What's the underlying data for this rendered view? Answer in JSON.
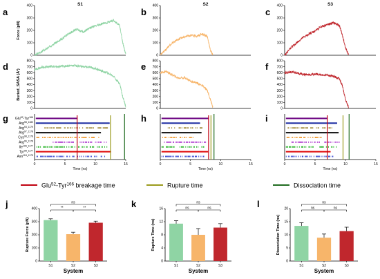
{
  "colors": {
    "s1": "#8fd4a4",
    "s2": "#f7b56a",
    "s3": "#c0272d",
    "breakage": "#c0000f",
    "rupture": "#9a9a1a",
    "dissociation": "#1f6b1f",
    "residue_colors": [
      "#6a0080",
      "#1a2aa0",
      "#a08a3a",
      "#111111",
      "#f09a30",
      "#b040d0",
      "#2bb52b",
      "#e01010",
      "#3a4ad0"
    ]
  },
  "columns": [
    {
      "title": "S1",
      "labels": {
        "top": "a",
        "mid": "d",
        "bot": "g"
      }
    },
    {
      "title": "S2",
      "labels": {
        "top": "b",
        "mid": "e",
        "bot": "h"
      }
    },
    {
      "title": "S3",
      "labels": {
        "top": "c",
        "mid": "f",
        "bot": "i"
      }
    }
  ],
  "residues": {
    "labels": [
      "Glu52-Tyr166",
      "Arg98-1180",
      "Arg93-1179",
      "Arg97-1178",
      "Cys98-1178",
      "Arg96-1178",
      "Ile106-1177",
      "Tyr98-1177",
      "Asn118-1175"
    ]
  },
  "legend": {
    "breakage": "Glu52-Tyr166 breakage time",
    "rupture": "Rupture time",
    "dissociation": "Dissociation time"
  },
  "chart_data": [
    {
      "panel": "a",
      "type": "line",
      "title": "S1",
      "ylabel": "Force (pN)",
      "xlim": [
        0,
        15
      ],
      "ylim": [
        0,
        400
      ],
      "yticks": [
        0,
        100,
        200,
        300,
        400
      ],
      "color": "#8fd4a4",
      "x": [
        0,
        1,
        2,
        3,
        4,
        5,
        6,
        7,
        8,
        9,
        10,
        11,
        12,
        13,
        14,
        14.5,
        15
      ],
      "y": [
        0,
        25,
        55,
        85,
        115,
        150,
        185,
        210,
        185,
        220,
        235,
        250,
        265,
        280,
        240,
        100,
        10
      ]
    },
    {
      "panel": "b",
      "type": "line",
      "title": "S2",
      "xlim": [
        0,
        15
      ],
      "ylim": [
        0,
        400
      ],
      "yticks": [
        0,
        100,
        200,
        300,
        400
      ],
      "color": "#f7b56a",
      "x": [
        0,
        1,
        2,
        3,
        4,
        5,
        6,
        7,
        7.8,
        8.3,
        8.7
      ],
      "y": [
        0,
        50,
        100,
        130,
        150,
        160,
        155,
        170,
        150,
        40,
        5
      ]
    },
    {
      "panel": "c",
      "type": "line",
      "title": "S3",
      "xlim": [
        0,
        15
      ],
      "ylim": [
        0,
        400
      ],
      "yticks": [
        0,
        100,
        200,
        300,
        400
      ],
      "color": "#c0272d",
      "x": [
        0,
        1,
        2,
        3,
        4,
        5,
        6,
        7,
        8,
        9,
        9.5,
        10,
        10.5
      ],
      "y": [
        0,
        60,
        100,
        140,
        170,
        195,
        230,
        245,
        260,
        240,
        160,
        60,
        5
      ]
    },
    {
      "panel": "d",
      "type": "line",
      "ylabel": "Buried_SASA (Å²)",
      "xlim": [
        0,
        15
      ],
      "ylim": [
        0,
        800
      ],
      "yticks": [
        0,
        100,
        200,
        300,
        400,
        500,
        600,
        700,
        800
      ],
      "color": "#8fd4a4",
      "x": [
        0,
        1,
        2,
        3,
        4,
        5,
        6,
        7,
        8,
        9,
        10,
        11,
        12,
        13,
        14,
        14.5,
        15
      ],
      "y": [
        650,
        690,
        700,
        705,
        700,
        710,
        720,
        715,
        700,
        690,
        670,
        630,
        600,
        540,
        420,
        200,
        30
      ]
    },
    {
      "panel": "e",
      "type": "line",
      "xlim": [
        0,
        15
      ],
      "ylim": [
        0,
        800
      ],
      "yticks": [
        0,
        100,
        200,
        300,
        400,
        500,
        600,
        700,
        800
      ],
      "color": "#f7b56a",
      "x": [
        0,
        1,
        2,
        3,
        4,
        5,
        6,
        7,
        7.8,
        8.3,
        8.7
      ],
      "y": [
        600,
        620,
        560,
        510,
        520,
        460,
        430,
        380,
        300,
        150,
        20
      ]
    },
    {
      "panel": "f",
      "type": "line",
      "xlim": [
        0,
        15
      ],
      "ylim": [
        0,
        800
      ],
      "yticks": [
        0,
        100,
        200,
        300,
        400,
        500,
        600,
        700,
        800
      ],
      "color": "#c0272d",
      "x": [
        0,
        1,
        2,
        3,
        4,
        5,
        6,
        7,
        8,
        9,
        9.5,
        10,
        10.5
      ],
      "y": [
        600,
        610,
        600,
        570,
        560,
        580,
        560,
        560,
        540,
        500,
        380,
        150,
        20
      ]
    },
    {
      "panel": "g",
      "type": "scatter",
      "xlabel": "Time (ns)",
      "xlim": [
        0,
        15
      ],
      "xticks": [
        0,
        5,
        10,
        15
      ],
      "categories": [
        "Glu52-Tyr166",
        "Arg98-1180",
        "Arg93-1179",
        "Arg97-1178",
        "Cys98-1178",
        "Arg96-1178",
        "Ile106-1177",
        "Tyr98-1177",
        "Asn118-1175"
      ],
      "intervals": [
        [
          0.2,
          7.0
        ],
        [
          0.2,
          12.2
        ],
        [
          1.5,
          12.0
        ],
        [
          0.2,
          10.8
        ],
        [
          0.3,
          10.5
        ],
        [
          3.0,
          12.0
        ],
        [
          0.2,
          12.0
        ],
        [
          0.2,
          12.5
        ],
        [
          0.2,
          11.5
        ]
      ],
      "breakage_time": 7.0,
      "rupture_time": 12.5,
      "dissociation_time": 14.8
    },
    {
      "panel": "h",
      "type": "scatter",
      "xlabel": "Time (ns)",
      "xlim": [
        0,
        15
      ],
      "xticks": [
        0,
        5,
        10,
        15
      ],
      "intervals": [
        [
          0.2,
          8.0
        ],
        [
          0.2,
          6.5
        ],
        [
          1.0,
          7.0
        ],
        [
          0.2,
          6.8
        ],
        [
          0.2,
          5.5
        ],
        [
          0.5,
          7.5
        ],
        [
          0.2,
          7.2
        ],
        [
          0.2,
          7.8
        ],
        [
          0.2,
          7.4
        ]
      ],
      "breakage_time": 8.0,
      "rupture_time": 8.4,
      "dissociation_time": 8.9
    },
    {
      "panel": "i",
      "type": "scatter",
      "xlabel": "Time (ns)",
      "xlim": [
        0,
        15
      ],
      "xticks": [
        0,
        5,
        10,
        15
      ],
      "intervals": [
        [
          0.2,
          7.0
        ],
        [
          0.2,
          8.5
        ],
        [
          0.5,
          8.0
        ],
        [
          0.2,
          8.8
        ],
        [
          0.2,
          6.2
        ],
        [
          1.0,
          9.0
        ],
        [
          0.2,
          8.5
        ],
        [
          0.2,
          7.5
        ],
        [
          0.2,
          8.0
        ]
      ],
      "breakage_time": 7.0,
      "rupture_time": 9.6,
      "dissociation_time": 10.6
    },
    {
      "panel": "j",
      "type": "bar",
      "ylabel": "Rupture Force (pN)",
      "xlabel": "System",
      "categories": [
        "S1",
        "S2",
        "S3"
      ],
      "values": [
        312,
        205,
        292
      ],
      "errors": [
        10,
        15,
        12
      ],
      "ylim": [
        0,
        400
      ],
      "yticks": [
        0,
        100,
        200,
        300,
        400
      ],
      "significance": [
        {
          "pair": [
            0,
            1
          ],
          "text": "**"
        },
        {
          "pair": [
            1,
            2
          ],
          "text": "**"
        },
        {
          "pair": [
            0,
            2
          ],
          "text": "ns"
        }
      ]
    },
    {
      "panel": "k",
      "type": "bar",
      "ylabel": "Rupture Time (ns)",
      "xlabel": "System",
      "categories": [
        "S1",
        "S2",
        "S3"
      ],
      "values": [
        11.4,
        8.0,
        10.2
      ],
      "errors": [
        0.9,
        1.9,
        1.2
      ],
      "ylim": [
        0,
        16
      ],
      "yticks": [
        0,
        4,
        8,
        12,
        16
      ],
      "significance": [
        {
          "pair": [
            0,
            1
          ],
          "text": "ns"
        },
        {
          "pair": [
            1,
            2
          ],
          "text": "ns"
        },
        {
          "pair": [
            0,
            2
          ],
          "text": "ns"
        }
      ]
    },
    {
      "panel": "l",
      "type": "bar",
      "ylabel": "Dissociation Time (ns)",
      "xlabel": "System",
      "categories": [
        "S1",
        "S2",
        "S3"
      ],
      "values": [
        13.4,
        8.9,
        11.4
      ],
      "errors": [
        1.2,
        1.4,
        1.5
      ],
      "ylim": [
        0,
        20
      ],
      "yticks": [
        0,
        5,
        10,
        15,
        20
      ],
      "significance": [
        {
          "pair": [
            0,
            1
          ],
          "text": "ns"
        },
        {
          "pair": [
            1,
            2
          ],
          "text": "ns"
        },
        {
          "pair": [
            0,
            2
          ],
          "text": "ns"
        }
      ]
    }
  ]
}
